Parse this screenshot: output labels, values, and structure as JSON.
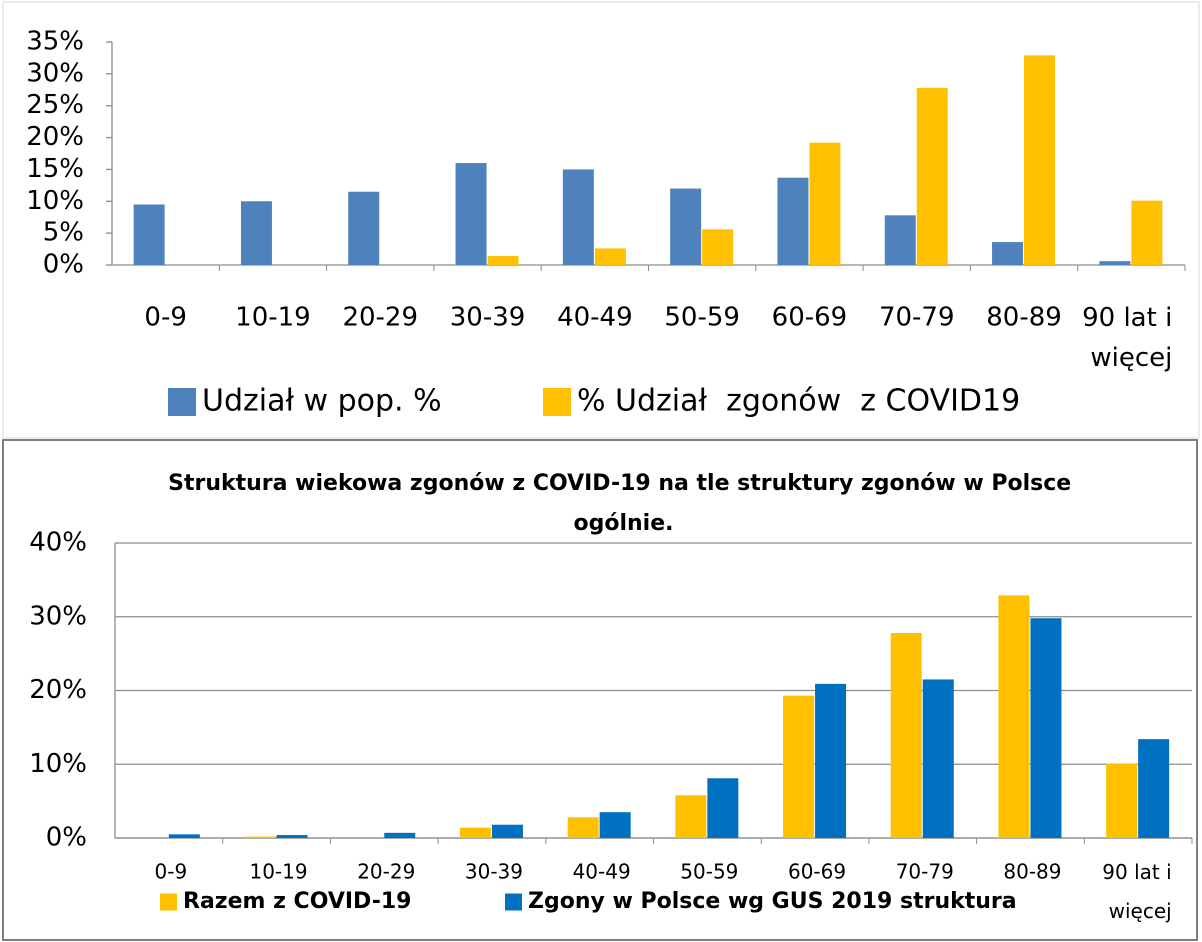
{
  "chart_data": [
    {
      "type": "bar",
      "categories": [
        "0-9",
        "10-19",
        "20-29",
        "30-39",
        "40-49",
        "50-59",
        "60-69",
        "70-79",
        "80-89",
        "90 lat i więcej"
      ],
      "series": [
        {
          "name": "Udział w pop. %",
          "color": "#4f81bd",
          "values": [
            9.5,
            10,
            11.5,
            16,
            15,
            12,
            13.7,
            7.8,
            3.6,
            0.6
          ]
        },
        {
          "name": "% Udział  zgonów  z COVID19",
          "color": "#ffc000",
          "values": [
            0,
            0,
            0,
            1.4,
            2.6,
            5.6,
            19.2,
            27.8,
            32.9,
            10.1
          ]
        }
      ],
      "ylim": [
        0,
        35
      ],
      "yticks": [
        {
          "value": 0,
          "label": "0%"
        },
        {
          "value": 5,
          "label": "5%"
        },
        {
          "value": 10,
          "label": "10%"
        },
        {
          "value": 15,
          "label": "15%"
        },
        {
          "value": 20,
          "label": "20%"
        },
        {
          "value": 25,
          "label": "25%"
        },
        {
          "value": 30,
          "label": "30%"
        },
        {
          "value": 35,
          "label": "35%"
        }
      ],
      "grid": false
    },
    {
      "type": "bar",
      "title": "Struktura wiekowa zgonów z COVID-19 na tle struktury zgonów w Polsce ogólnie.",
      "categories": [
        "0-9",
        "10-19",
        "20-29",
        "30-39",
        "40-49",
        "50-59",
        "60-69",
        "70-79",
        "80-89",
        "90 lat i więcej"
      ],
      "series": [
        {
          "name": "Razem z COVID-19",
          "color": "#ffc000",
          "values": [
            0,
            0.2,
            0,
            1.4,
            2.8,
            5.8,
            19.3,
            27.8,
            32.9,
            10.1
          ]
        },
        {
          "name": "Zgony w Polsce wg GUS 2019 struktura",
          "color": "#0070c0",
          "values": [
            0.5,
            0.4,
            0.7,
            1.8,
            3.5,
            8.1,
            20.9,
            21.5,
            29.8,
            13.4
          ]
        }
      ],
      "ylim": [
        0,
        40
      ],
      "yticks": [
        {
          "value": 0,
          "label": "0%"
        },
        {
          "value": 10,
          "label": "10%"
        },
        {
          "value": 20,
          "label": "20%"
        },
        {
          "value": 30,
          "label": "30%"
        },
        {
          "value": 40,
          "label": "40%"
        }
      ],
      "grid": true
    }
  ]
}
